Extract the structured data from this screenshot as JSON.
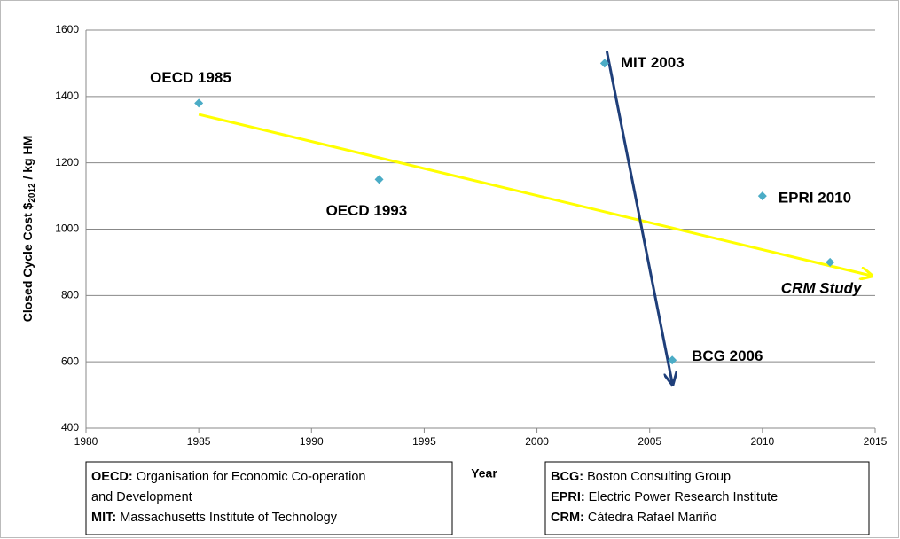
{
  "chart_data": {
    "type": "scatter",
    "xlabel": "Year",
    "ylabel_parts": [
      "Closed Cycle Cost $",
      "2012",
      " / kg HM"
    ],
    "x": [
      1985,
      1993,
      2003,
      2006,
      2010,
      2013
    ],
    "values": [
      1380,
      1150,
      1500,
      605,
      1100,
      900
    ],
    "point_labels": [
      "OECD 1985",
      "OECD 1993",
      "MIT 2003",
      "BCG 2006",
      "EPRI 2010",
      "CRM Study"
    ],
    "color": "#4bacc6",
    "xlim": [
      1980,
      2015
    ],
    "xticks": [
      1980,
      1985,
      1990,
      1995,
      2000,
      2005,
      2010,
      2015
    ],
    "ylim": [
      400,
      1600
    ],
    "yticks": [
      400,
      600,
      800,
      1000,
      1200,
      1400,
      1600
    ],
    "grid": true,
    "arrows": [
      {
        "color": "#ffff00",
        "x": [
          1985,
          2014.8
        ],
        "y": [
          1346,
          860
        ]
      },
      {
        "color": "#1f3f7a",
        "x": [
          2003.1,
          2006
        ],
        "y": [
          1536,
          536
        ]
      }
    ],
    "notes": [
      [
        {
          "abbr": "OECD:",
          "text": "Organisation for Economic Co-operation"
        },
        {
          "text": "and Development"
        },
        {
          "abbr": "MIT:",
          "text": "Massachusetts Institute of Technology"
        }
      ],
      [
        {
          "abbr": "BCG:",
          "text": "Boston Consulting Group"
        },
        {
          "abbr": "EPRI:",
          "text": "Electric Power Research Institute"
        },
        {
          "abbr": "CRM:",
          "text": "Cátedra Rafael Mariño"
        }
      ]
    ]
  }
}
